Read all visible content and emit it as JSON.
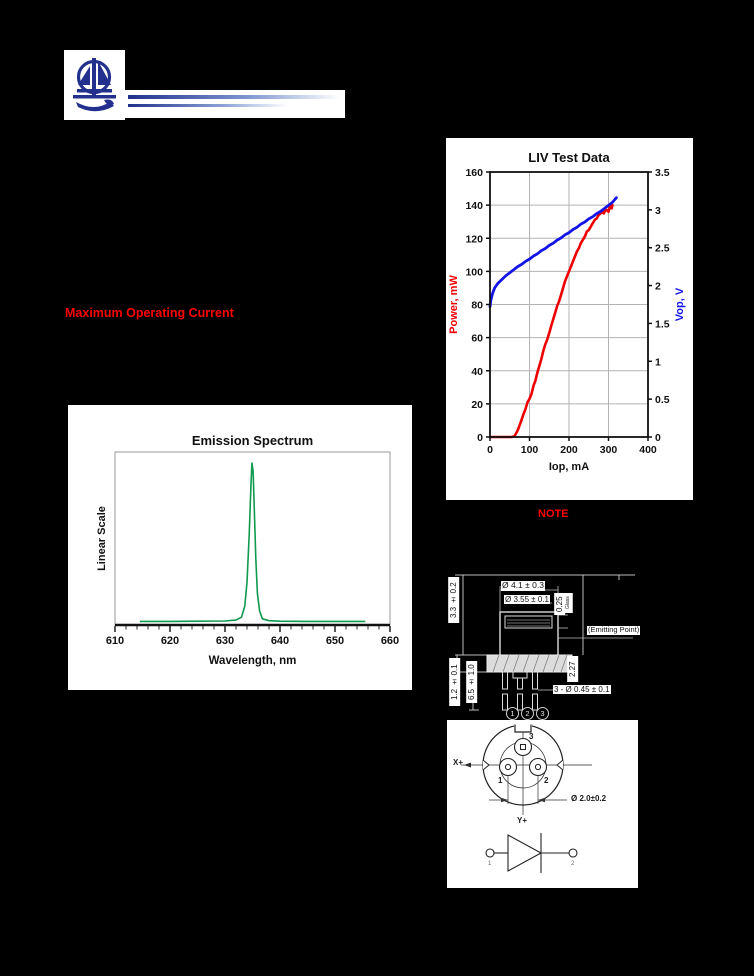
{
  "colors": {
    "page_bg": "#000000",
    "logo_blue": "#23308e",
    "heading_red": "#ff0000",
    "power_red": "#ee0000",
    "vop_blue": "#1414e6",
    "spectrum_green": "#0f9a4e",
    "grid_gray": "#b3b3b3"
  },
  "headings": {
    "max_operating_current": "Maximum Operating Current",
    "note": "NOTE"
  },
  "chart_data": [
    {
      "id": "liv",
      "type": "line",
      "title": "LIV Test Data",
      "xlabel": "Iop, mA",
      "ylabel_left": "Power, mW",
      "ylabel_right": "Vop, V",
      "xlim": [
        0,
        400
      ],
      "xticks": [
        0,
        100,
        200,
        300,
        400
      ],
      "ylim_left": [
        0,
        160
      ],
      "yticks_left": [
        0,
        20,
        40,
        60,
        80,
        100,
        120,
        140,
        160
      ],
      "ylim_right": [
        0,
        3.5
      ],
      "yticks_right": [
        0,
        0.5,
        1,
        1.5,
        2,
        2.5,
        3,
        3.5
      ],
      "grid": true,
      "legend": "none",
      "series": [
        {
          "name": "Power",
          "axis": "left",
          "color": "#ee0000",
          "points": [
            [
              0,
              0
            ],
            [
              55,
              0
            ],
            [
              62,
              0.5
            ],
            [
              70,
              4
            ],
            [
              78,
              9
            ],
            [
              85,
              14
            ],
            [
              90,
              17
            ],
            [
              95,
              21
            ],
            [
              100,
              23
            ],
            [
              105,
              26
            ],
            [
              110,
              31
            ],
            [
              115,
              34
            ],
            [
              120,
              39
            ],
            [
              125,
              43
            ],
            [
              130,
              47
            ],
            [
              135,
              52
            ],
            [
              140,
              56
            ],
            [
              145,
              59
            ],
            [
              150,
              63
            ],
            [
              155,
              67
            ],
            [
              160,
              71
            ],
            [
              165,
              75
            ],
            [
              170,
              79
            ],
            [
              175,
              82
            ],
            [
              180,
              86
            ],
            [
              185,
              90
            ],
            [
              190,
              94
            ],
            [
              195,
              97
            ],
            [
              200,
              100
            ],
            [
              205,
              103
            ],
            [
              210,
              106
            ],
            [
              215,
              109
            ],
            [
              220,
              112
            ],
            [
              225,
              114
            ],
            [
              230,
              117
            ],
            [
              235,
              119
            ],
            [
              240,
              121
            ],
            [
              245,
              124
            ],
            [
              250,
              125
            ],
            [
              255,
              127
            ],
            [
              260,
              129
            ],
            [
              265,
              131
            ],
            [
              270,
              132
            ],
            [
              275,
              134
            ],
            [
              280,
              135
            ],
            [
              285,
              136
            ],
            [
              288,
              135
            ],
            [
              292,
              137
            ],
            [
              296,
              137
            ],
            [
              300,
              136
            ],
            [
              303,
              139
            ],
            [
              306,
              140
            ],
            [
              308,
              138
            ],
            [
              310,
              140
            ]
          ]
        },
        {
          "name": "Vop",
          "axis": "right",
          "color": "#1414e6",
          "points": [
            [
              0,
              1.72
            ],
            [
              2,
              1.8
            ],
            [
              5,
              1.87
            ],
            [
              8,
              1.92
            ],
            [
              12,
              1.97
            ],
            [
              16,
              2.0
            ],
            [
              20,
              2.03
            ],
            [
              30,
              2.08
            ],
            [
              40,
              2.13
            ],
            [
              50,
              2.17
            ],
            [
              60,
              2.21
            ],
            [
              70,
              2.25
            ],
            [
              80,
              2.28
            ],
            [
              90,
              2.32
            ],
            [
              100,
              2.35
            ],
            [
              110,
              2.39
            ],
            [
              120,
              2.42
            ],
            [
              130,
              2.46
            ],
            [
              140,
              2.49
            ],
            [
              150,
              2.53
            ],
            [
              160,
              2.56
            ],
            [
              170,
              2.6
            ],
            [
              180,
              2.63
            ],
            [
              190,
              2.67
            ],
            [
              200,
              2.7
            ],
            [
              210,
              2.74
            ],
            [
              220,
              2.77
            ],
            [
              230,
              2.81
            ],
            [
              240,
              2.84
            ],
            [
              250,
              2.88
            ],
            [
              260,
              2.91
            ],
            [
              270,
              2.95
            ],
            [
              280,
              2.98
            ],
            [
              290,
              3.02
            ],
            [
              300,
              3.06
            ],
            [
              310,
              3.1
            ],
            [
              315,
              3.13
            ],
            [
              320,
              3.16
            ]
          ]
        }
      ]
    },
    {
      "id": "emission",
      "type": "line",
      "title": "Emission Spectrum",
      "xlabel": "Wavelength, nm",
      "ylabel": "Linear Scale",
      "xlim": [
        610,
        660
      ],
      "xticks": [
        610,
        620,
        630,
        640,
        650,
        660
      ],
      "minor_tick_step": 2,
      "peak_nm": 635,
      "grid": false,
      "series": [
        {
          "name": "spectrum",
          "color": "#0f9a4e",
          "points": [
            [
              614.5,
              0.004
            ],
            [
              620,
              0.004
            ],
            [
              625,
              0.005
            ],
            [
              630,
              0.006
            ],
            [
              632,
              0.012
            ],
            [
              633,
              0.03
            ],
            [
              633.6,
              0.1
            ],
            [
              634,
              0.25
            ],
            [
              634.4,
              0.55
            ],
            [
              634.7,
              0.85
            ],
            [
              634.9,
              1.0
            ],
            [
              635.1,
              0.95
            ],
            [
              635.3,
              0.75
            ],
            [
              635.6,
              0.4
            ],
            [
              635.9,
              0.18
            ],
            [
              636.3,
              0.07
            ],
            [
              636.8,
              0.02
            ],
            [
              638,
              0.008
            ],
            [
              640,
              0.005
            ],
            [
              645,
              0.004
            ],
            [
              650,
              0.004
            ],
            [
              655.5,
              0.004
            ]
          ]
        }
      ]
    }
  ],
  "drawing": {
    "side_view": {
      "dim_cap_height": "3.3 ± 0.2",
      "dim_cap_dia": "Ø 4.1 ± 0.3",
      "dim_window_dia": "Ø 3.55 ± 0.1",
      "dim_glass_thickness": "0.25",
      "glass_label": "Glass",
      "emitting_point": "(Emitting Point)",
      "dim_emitting_height": "2.27",
      "dim_flange_thickness": "1.2 ± 0.1",
      "dim_pin_length": "6.5 ± 1.0",
      "dim_pin_dia": "3 - Ø 0.45 ± 0.1",
      "pin_numbers": [
        "1",
        "2",
        "3"
      ]
    },
    "bottom_view": {
      "axis_x": "X+",
      "axis_y": "Y+",
      "pin3_label": "3",
      "pin1_label": "1",
      "pin2_label": "2",
      "dim_pin_circle": "Ø 2.0±0.2"
    },
    "diode_symbol": {
      "terminal1": "1",
      "terminal2": "2"
    }
  }
}
